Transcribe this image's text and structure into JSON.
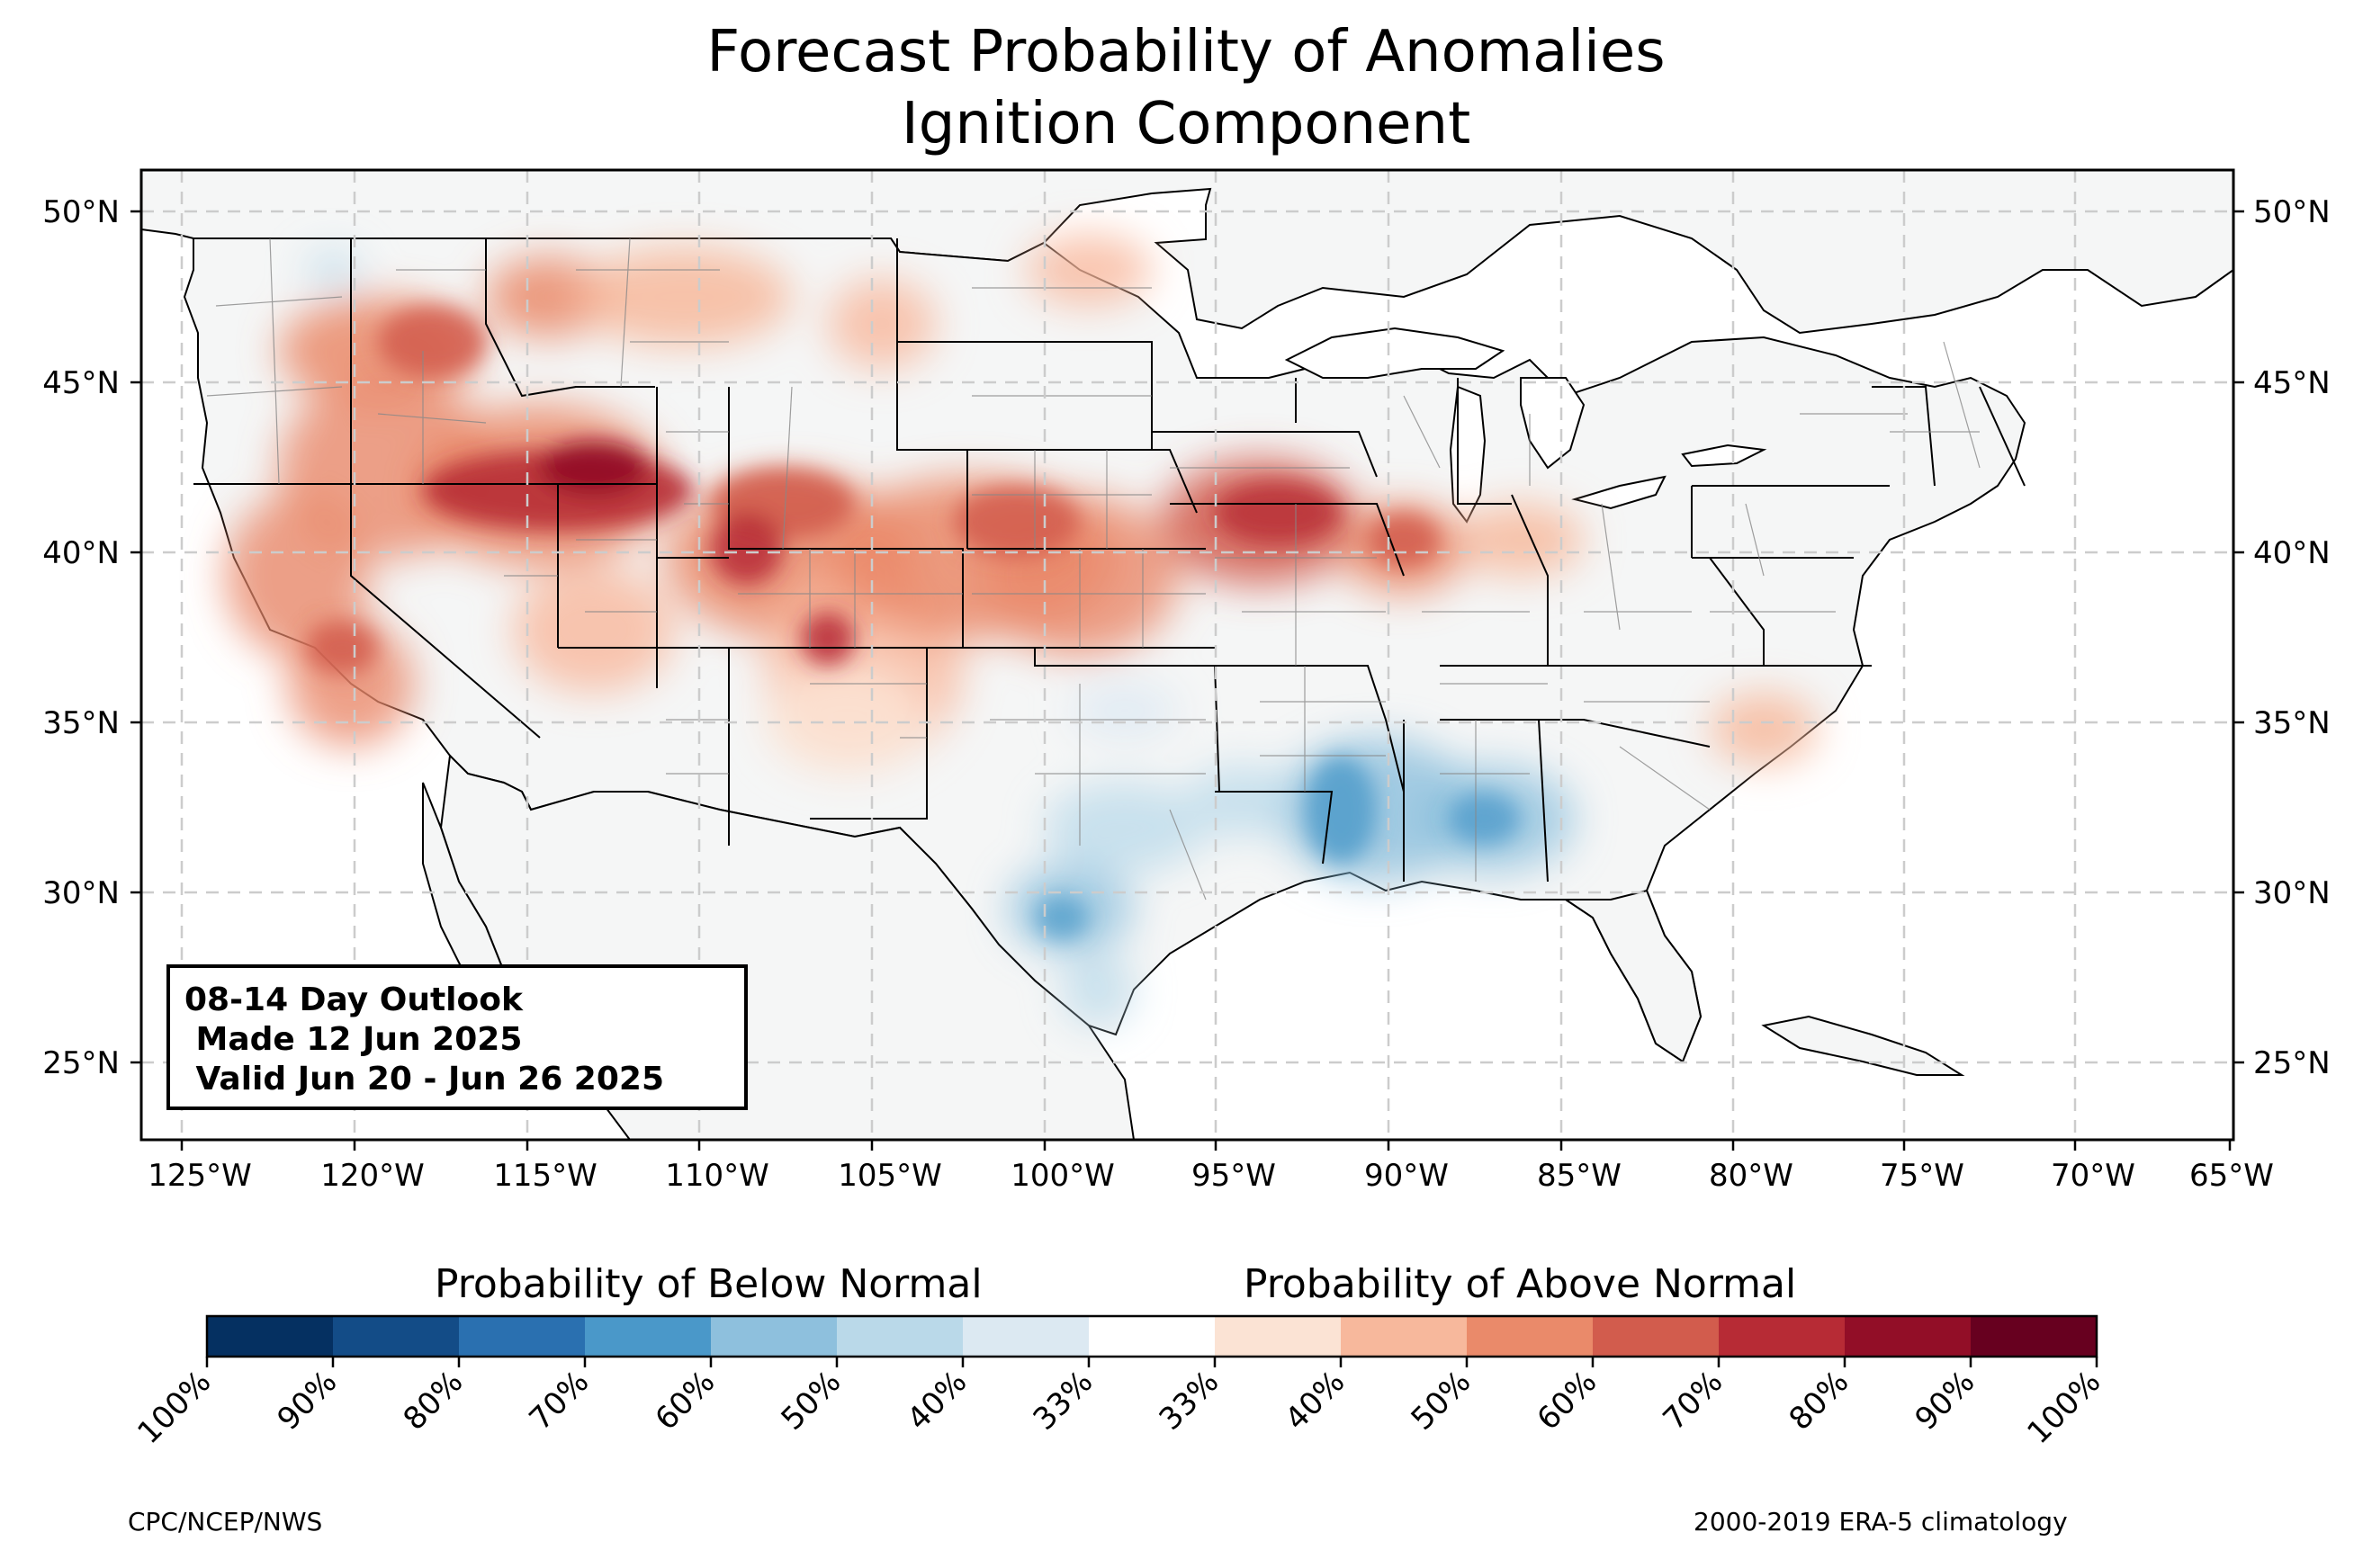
{
  "title": {
    "line1": "Forecast Probability of Anomalies",
    "line2": "Ignition Component"
  },
  "outlook_box": {
    "line1": "08-14 Day Outlook",
    "line2": " Made 12 Jun 2025",
    "line3": " Valid Jun 20 - Jun 26 2025"
  },
  "map": {
    "lon_ticks": [
      "125°W",
      "120°W",
      "115°W",
      "110°W",
      "105°W",
      "100°W",
      "95°W",
      "90°W",
      "85°W",
      "80°W",
      "75°W",
      "70°W",
      "65°W"
    ],
    "lat_ticks": [
      "50°N",
      "45°N",
      "40°N",
      "35°N",
      "30°N",
      "25°N"
    ],
    "grid": true,
    "colors": {
      "ocean": "#ffffff",
      "land": "#f5f6f6",
      "border": "#000000",
      "county": "#888888",
      "grid": "#cccccc"
    },
    "regions": [
      {
        "name": "Pacific Northwest above-normal",
        "level": 4
      },
      {
        "name": "Idaho/Montana above-normal",
        "level": 5
      },
      {
        "name": "Great Basin above-normal core",
        "level": 7
      },
      {
        "name": "California above-normal",
        "level": 5
      },
      {
        "name": "Colorado/Wyoming above-normal",
        "level": 6
      },
      {
        "name": "Central Plains above-normal",
        "level": 5
      },
      {
        "name": "Iowa/Illinois above-normal",
        "level": 5
      },
      {
        "name": "Indiana/Ohio above-normal",
        "level": 4
      },
      {
        "name": "Carolinas above-normal",
        "level": 3
      },
      {
        "name": "Lower Mississippi below-normal",
        "level": -4
      },
      {
        "name": "Texas below-normal",
        "level": -3
      },
      {
        "name": "Alabama below-normal",
        "level": -3
      }
    ]
  },
  "colorbar": {
    "below_title": "Probability of Below Normal",
    "above_title": "Probability of Above Normal",
    "colors": [
      "#053061",
      "#134c87",
      "#2a70b0",
      "#4a98c9",
      "#8ec0dd",
      "#bad9e9",
      "#dce9f2",
      "#ffffff",
      "#fbe3d4",
      "#f7b89c",
      "#ea8a6a",
      "#d25c4d",
      "#b72b35",
      "#920e27",
      "#67001f"
    ],
    "tick_labels": [
      "100%",
      "90%",
      "80%",
      "70%",
      "60%",
      "50%",
      "40%",
      "33%",
      "33%",
      "40%",
      "50%",
      "60%",
      "70%",
      "80%",
      "90%",
      "100%"
    ]
  },
  "footer": {
    "left": "CPC/NCEP/NWS",
    "right": "2000-2019 ERA-5 climatology"
  }
}
